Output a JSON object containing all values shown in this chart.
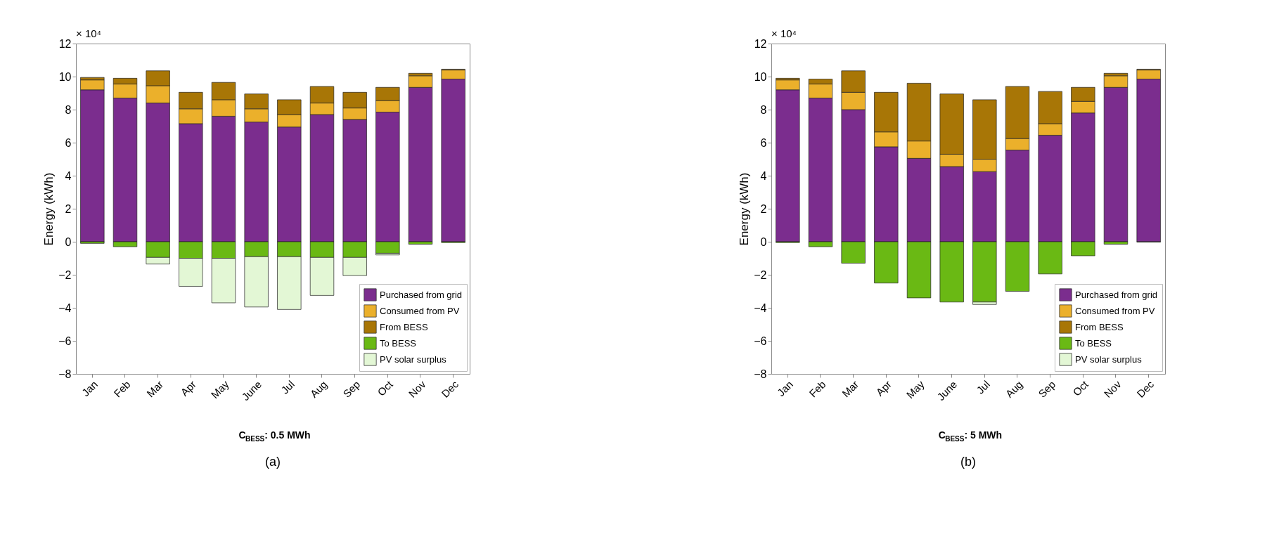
{
  "chart_data": [
    {
      "type": "bar",
      "stacked": true,
      "xlabel": "C$_{BESS}$: 0.5 MWh",
      "ylabel": "Energy (kWh)",
      "legend": "bottom right",
      "grid": false,
      "categories": [
        "Jan",
        "Feb",
        "Mar",
        "Apr",
        "May",
        "June",
        "Jul",
        "Aug",
        "Sep",
        "Oct",
        "Nov",
        "Dec"
      ],
      "ylim": [
        -8,
        12
      ],
      "yticks": [
        -8,
        -6,
        -4,
        -2,
        0,
        2,
        4,
        6,
        8,
        10,
        12
      ],
      "annotations": [
        "× 10⁴",
        "(a)"
      ],
      "series": [
        {
          "name": "Purchased from grid",
          "color": "#7b2d8e",
          "values": [
            9.2,
            8.7,
            8.4,
            7.15,
            7.6,
            7.25,
            6.95,
            7.7,
            7.4,
            7.85,
            9.35,
            9.85
          ]
        },
        {
          "name": "Consumed from PV",
          "color": "#ebb02b",
          "values": [
            0.6,
            0.85,
            1.05,
            0.9,
            1.0,
            0.8,
            0.75,
            0.7,
            0.7,
            0.7,
            0.7,
            0.55
          ]
        },
        {
          "name": "From BESS",
          "color": "#a87606",
          "values": [
            0.15,
            0.35,
            0.9,
            1.0,
            1.05,
            0.9,
            0.9,
            1.0,
            0.95,
            0.8,
            0.15,
            0.05
          ]
        },
        {
          "name": "To BESS",
          "color": "#6ab914",
          "values": [
            -0.1,
            -0.3,
            -0.95,
            -1.0,
            -1.0,
            -0.9,
            -0.9,
            -0.95,
            -0.95,
            -0.7,
            -0.15,
            -0.05
          ]
        },
        {
          "name": "PV solar surplus",
          "color": "#e3f7d5",
          "values": [
            null,
            null,
            -0.4,
            -1.7,
            -2.7,
            -3.05,
            -3.2,
            -2.3,
            -1.1,
            -0.1,
            null,
            null
          ]
        }
      ]
    },
    {
      "type": "bar",
      "stacked": true,
      "xlabel": "C$_{BESS}$: 5 MWh",
      "ylabel": "Energy (kWh)",
      "legend": "bottom right",
      "grid": false,
      "categories": [
        "Jan",
        "Feb",
        "Mar",
        "Apr",
        "May",
        "June",
        "Jul",
        "Aug",
        "Sep",
        "Oct",
        "Nov",
        "Dec"
      ],
      "ylim": [
        -8,
        12
      ],
      "yticks": [
        -8,
        -6,
        -4,
        -2,
        0,
        2,
        4,
        6,
        8,
        10,
        12
      ],
      "annotations": [
        "× 10⁴",
        "(b)"
      ],
      "series": [
        {
          "name": "Purchased from grid",
          "color": "#7b2d8e",
          "values": [
            9.2,
            8.7,
            8.0,
            5.75,
            5.05,
            4.55,
            4.25,
            5.55,
            6.45,
            7.8,
            9.35,
            9.85
          ]
        },
        {
          "name": "Consumed from PV",
          "color": "#ebb02b",
          "values": [
            0.6,
            0.85,
            1.05,
            0.9,
            1.05,
            0.75,
            0.75,
            0.7,
            0.7,
            0.7,
            0.7,
            0.55
          ]
        },
        {
          "name": "From BESS",
          "color": "#a87606",
          "values": [
            0.1,
            0.3,
            1.3,
            2.4,
            3.5,
            3.65,
            3.6,
            3.15,
            1.95,
            0.85,
            0.15,
            0.05
          ]
        },
        {
          "name": "To BESS",
          "color": "#6ab914",
          "values": [
            -0.05,
            -0.3,
            -1.3,
            -2.5,
            -3.4,
            -3.65,
            -3.65,
            -3.0,
            -1.95,
            -0.85,
            -0.15,
            -0.02
          ]
        },
        {
          "name": "PV solar surplus",
          "color": "#e3f7d5",
          "values": [
            null,
            null,
            null,
            null,
            null,
            null,
            -0.15,
            null,
            null,
            null,
            null,
            null
          ]
        }
      ]
    }
  ]
}
